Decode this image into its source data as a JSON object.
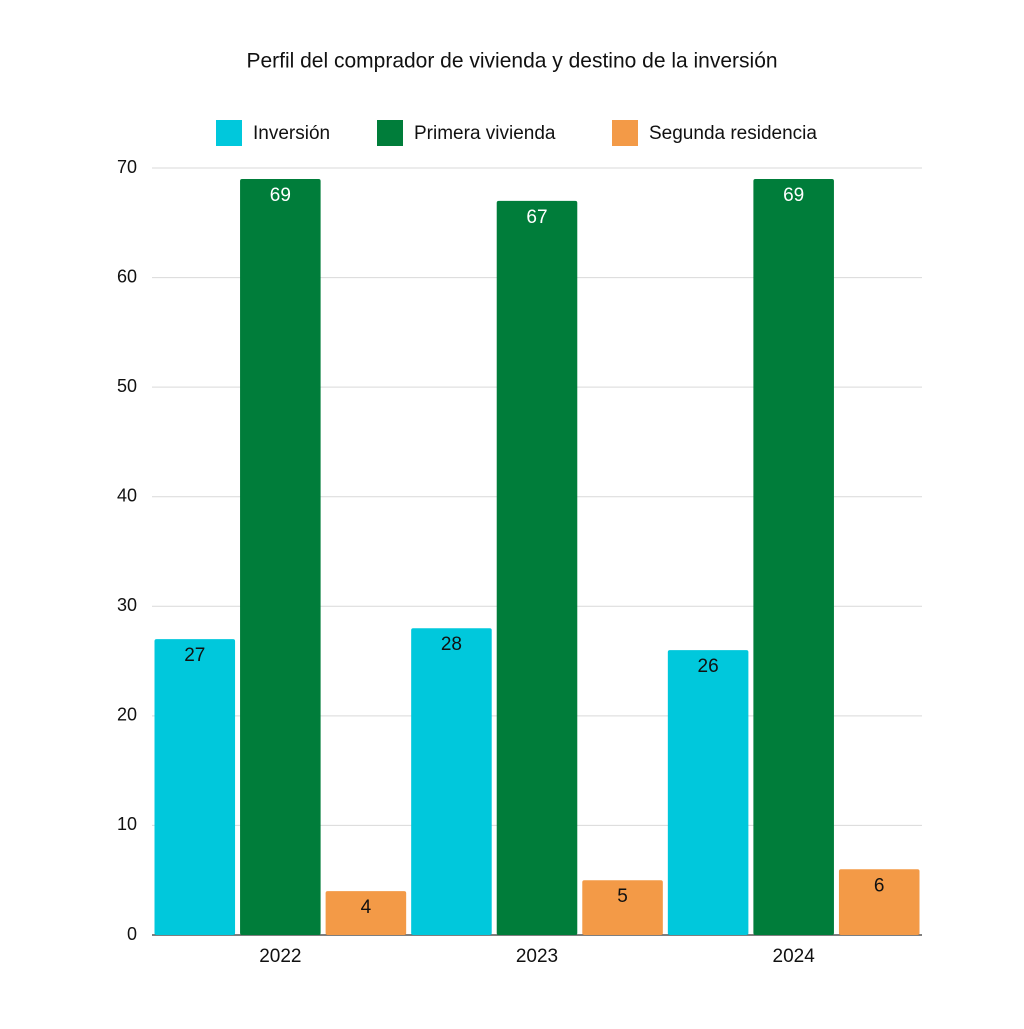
{
  "chart_data": {
    "type": "bar",
    "title": "Perfil del comprador de vivienda y destino de la inversión",
    "categories": [
      "2022",
      "2023",
      "2024"
    ],
    "series": [
      {
        "name": "Inversión",
        "color": "#00c8dc",
        "values": [
          27,
          28,
          26
        ]
      },
      {
        "name": "Primera vivienda",
        "color": "#007d3a",
        "values": [
          69,
          67,
          69
        ]
      },
      {
        "name": "Segunda residencia",
        "color": "#f39a47",
        "values": [
          4,
          5,
          6
        ]
      }
    ],
    "ylim": [
      0,
      70
    ],
    "yticks": [
      0,
      10,
      20,
      30,
      40,
      50,
      60,
      70
    ],
    "grid": true,
    "legend": "top"
  }
}
